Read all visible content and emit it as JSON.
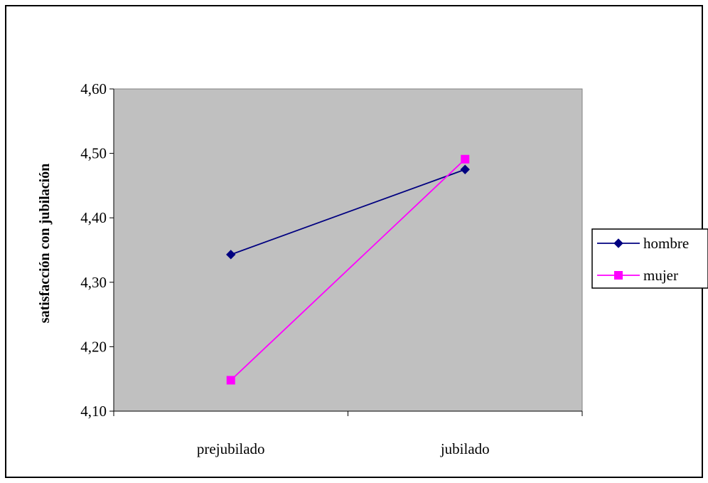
{
  "chart_data": {
    "type": "line",
    "title": "",
    "xlabel": "",
    "ylabel": "satisfacción con jubilación",
    "categories": [
      "prejubilado",
      "jubilado"
    ],
    "ylim": [
      4.1,
      4.6
    ],
    "yticks": [
      "4,10",
      "4,20",
      "4,30",
      "4,40",
      "4,50",
      "4,60"
    ],
    "grid": false,
    "legend_position": "right",
    "plot_background": "#c0c0c0",
    "series": [
      {
        "name": "hombre",
        "values": [
          4.343,
          4.475
        ],
        "color": "#000080",
        "marker": "diamond"
      },
      {
        "name": "mujer",
        "values": [
          4.148,
          4.491
        ],
        "color": "#ff00ff",
        "marker": "square"
      }
    ]
  }
}
